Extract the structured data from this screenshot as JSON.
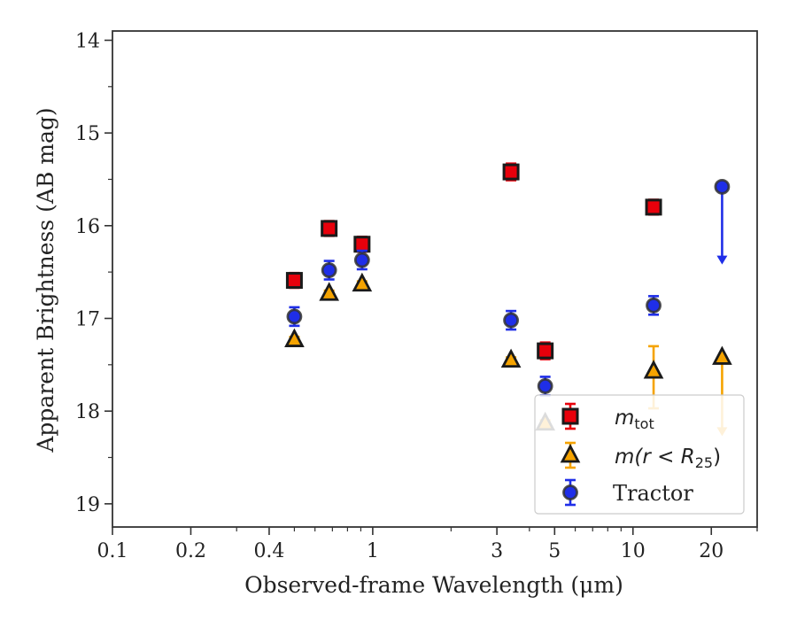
{
  "chart_data": {
    "type": "scatter",
    "xlabel": "Observed-frame Wavelength (μm)",
    "ylabel": "Apparent Brightness (AB mag)",
    "x_scale": "log",
    "y_inverted": true,
    "xlim": [
      0.1,
      30
    ],
    "ylim": [
      19.25,
      13.9
    ],
    "x_ticks": [
      {
        "value": 0.1,
        "label": "0.1"
      },
      {
        "value": 0.2,
        "label": "0.2"
      },
      {
        "value": 0.4,
        "label": "0.4"
      },
      {
        "value": 1,
        "label": "1"
      },
      {
        "value": 3,
        "label": "3"
      },
      {
        "value": 5,
        "label": "5"
      },
      {
        "value": 10,
        "label": "10"
      },
      {
        "value": 20,
        "label": "20"
      }
    ],
    "y_ticks": [
      {
        "value": 14,
        "label": "14"
      },
      {
        "value": 15,
        "label": "15"
      },
      {
        "value": 16,
        "label": "16"
      },
      {
        "value": 17,
        "label": "17"
      },
      {
        "value": 18,
        "label": "18"
      },
      {
        "value": 19,
        "label": "19"
      }
    ],
    "grid": false,
    "legend_position": "lower-right",
    "series": [
      {
        "name": "m_tot",
        "marker": "square",
        "color": "#e8000b",
        "edge": "#1a1a1a",
        "points": [
          {
            "x": 0.5,
            "y": 16.59,
            "err": 0.08
          },
          {
            "x": 0.68,
            "y": 16.03,
            "err": 0.08
          },
          {
            "x": 0.91,
            "y": 16.2,
            "err": 0.08
          },
          {
            "x": 3.4,
            "y": 15.42,
            "err": 0.09
          },
          {
            "x": 4.6,
            "y": 17.35,
            "err": 0.09
          },
          {
            "x": 12.0,
            "y": 15.8,
            "err": 0.08
          }
        ]
      },
      {
        "name": "m(r < R25)",
        "marker": "triangle",
        "color": "#f5a300",
        "edge": "#1a1a1a",
        "points": [
          {
            "x": 0.5,
            "y": 17.23,
            "err": 0.03
          },
          {
            "x": 0.68,
            "y": 16.73,
            "err": 0.03
          },
          {
            "x": 0.91,
            "y": 16.63,
            "err": 0.03
          },
          {
            "x": 3.4,
            "y": 17.45,
            "err": 0.03
          },
          {
            "x": 4.6,
            "y": 18.13,
            "err": 0.03
          },
          {
            "x": 12.0,
            "y": 17.57,
            "err_up": 0.27,
            "err_down": 0.4
          },
          {
            "x": 22.0,
            "y": 17.42,
            "upper_limit": true,
            "arrow_to": 18.25
          }
        ]
      },
      {
        "name": "Tractor",
        "marker": "circle",
        "color": "#1f2ee8",
        "edge": "#333333",
        "points": [
          {
            "x": 0.5,
            "y": 16.98,
            "err": 0.1
          },
          {
            "x": 0.68,
            "y": 16.48,
            "err": 0.1
          },
          {
            "x": 0.91,
            "y": 16.37,
            "err": 0.1
          },
          {
            "x": 3.4,
            "y": 17.02,
            "err": 0.1
          },
          {
            "x": 4.6,
            "y": 17.73,
            "err": 0.1
          },
          {
            "x": 12.0,
            "y": 16.86,
            "err": 0.1
          },
          {
            "x": 22.0,
            "y": 15.58,
            "upper_limit": true,
            "arrow_to": 16.4
          }
        ]
      }
    ],
    "legend": [
      {
        "series": 0,
        "label_main": "m",
        "label_sub": "tot",
        "style": "math"
      },
      {
        "series": 1,
        "label": "m(r < R",
        "label_sub": "25",
        "label_end": ")",
        "style": "math"
      },
      {
        "series": 2,
        "label": "Tractor",
        "style": "serif"
      }
    ]
  }
}
